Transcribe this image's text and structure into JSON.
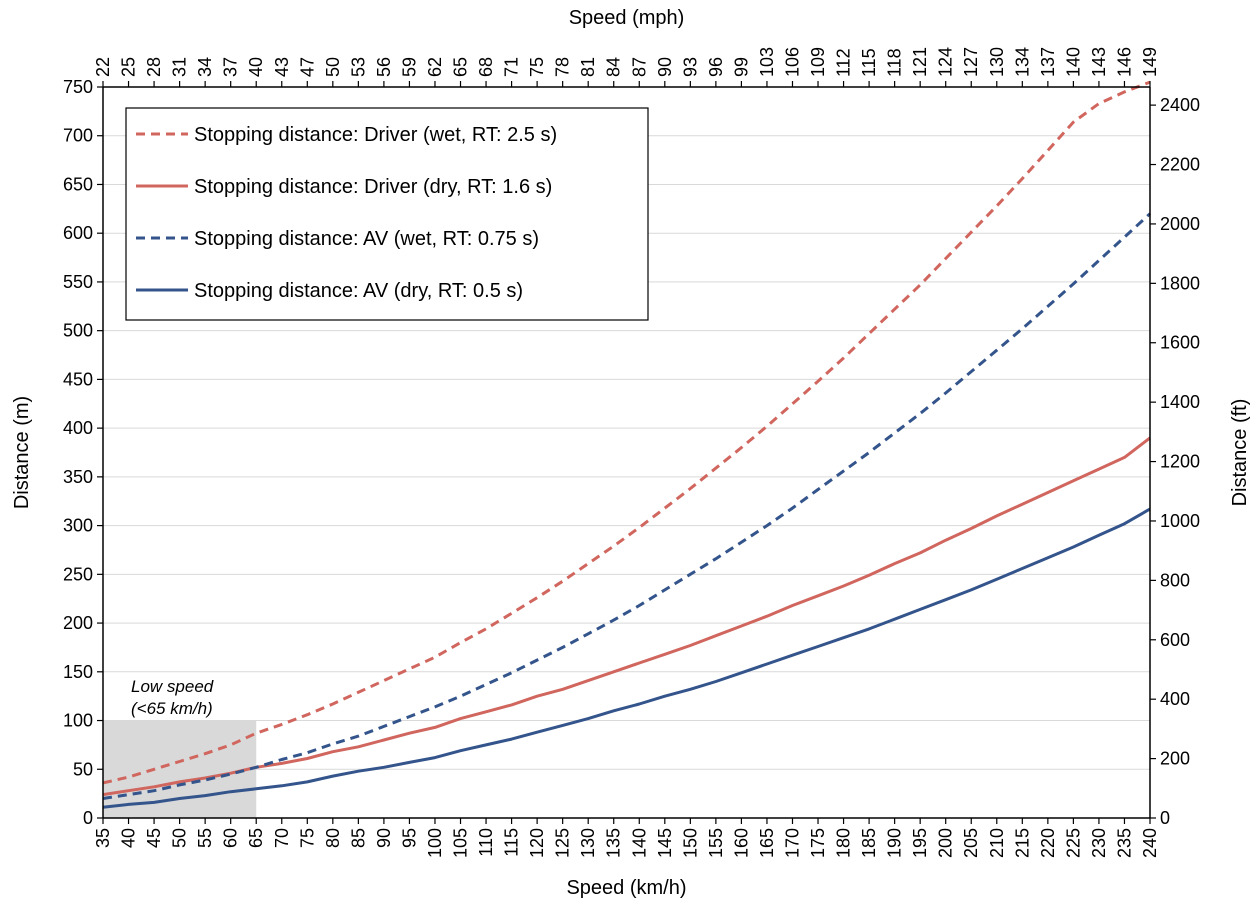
{
  "chart_data": {
    "type": "line",
    "title": "",
    "xlabel": "Speed (km/h)",
    "x2label": "Speed (mph)",
    "ylabel": "Distance (m)",
    "y2label": "Distance (ft)",
    "xlim": [
      35,
      240
    ],
    "ylim": [
      0,
      750
    ],
    "y2lim": [
      0,
      2461
    ],
    "x": [
      35,
      40,
      45,
      50,
      55,
      60,
      65,
      70,
      75,
      80,
      85,
      90,
      95,
      100,
      105,
      110,
      115,
      120,
      125,
      130,
      135,
      140,
      145,
      150,
      155,
      160,
      165,
      170,
      175,
      180,
      185,
      190,
      195,
      200,
      205,
      210,
      215,
      220,
      225,
      230,
      235,
      240
    ],
    "x_tick_labels": [
      "35",
      "40",
      "45",
      "50",
      "55",
      "60",
      "65",
      "70",
      "75",
      "80",
      "85",
      "90",
      "95",
      "100",
      "105",
      "110",
      "115",
      "120",
      "125",
      "130",
      "135",
      "140",
      "145",
      "150",
      "155",
      "160",
      "165",
      "170",
      "175",
      "180",
      "185",
      "190",
      "195",
      "200",
      "205",
      "210",
      "215",
      "220",
      "225",
      "230",
      "235",
      "240"
    ],
    "mph_tick_labels": [
      "22",
      "25",
      "28",
      "31",
      "34",
      "37",
      "40",
      "43",
      "47",
      "50",
      "53",
      "56",
      "59",
      "62",
      "65",
      "68",
      "71",
      "75",
      "78",
      "81",
      "84",
      "87",
      "90",
      "93",
      "96",
      "99",
      "103",
      "106",
      "109",
      "112",
      "115",
      "118",
      "121",
      "124",
      "127",
      "130",
      "134",
      "137",
      "140",
      "143",
      "146",
      "149"
    ],
    "y_tick_labels": [
      "0",
      "50",
      "100",
      "150",
      "200",
      "250",
      "300",
      "350",
      "400",
      "450",
      "500",
      "550",
      "600",
      "650",
      "700",
      "750"
    ],
    "y2_tick_labels": [
      "0",
      "200",
      "400",
      "600",
      "800",
      "1000",
      "1200",
      "1400",
      "1600",
      "1800",
      "2000",
      "2200",
      "2400"
    ],
    "grid": true,
    "legend_position": "top-left",
    "series": [
      {
        "name": "Stopping distance: Driver (wet, RT: 2.5 s)",
        "color": "#d0665e",
        "dashed": true,
        "values": [
          36,
          42,
          50,
          58,
          66,
          75,
          87,
          96,
          106,
          117,
          129,
          141,
          153,
          165,
          180,
          194,
          210,
          226,
          243,
          261,
          279,
          298,
          318,
          338,
          359,
          380,
          402,
          425,
          448,
          472,
          497,
          522,
          547,
          574,
          601,
          628,
          656,
          685,
          714,
          733,
          745,
          755
        ]
      },
      {
        "name": "Stopping distance: Driver (dry, RT: 1.6 s)",
        "color": "#d0665e",
        "dashed": false,
        "values": [
          24,
          28,
          32,
          37,
          41,
          46,
          52,
          56,
          61,
          68,
          73,
          80,
          87,
          93,
          102,
          109,
          116,
          125,
          132,
          141,
          150,
          159,
          168,
          177,
          187,
          197,
          207,
          218,
          228,
          238,
          249,
          261,
          272,
          285,
          297,
          310,
          322,
          334,
          346,
          358,
          370,
          390
        ]
      },
      {
        "name": "Stopping distance: AV (wet, RT: 0.75 s)",
        "color": "#34548c",
        "dashed": true,
        "values": [
          20,
          24,
          28,
          34,
          39,
          45,
          52,
          60,
          67,
          76,
          84,
          94,
          104,
          114,
          125,
          137,
          149,
          162,
          175,
          189,
          203,
          218,
          234,
          250,
          266,
          283,
          300,
          318,
          337,
          356,
          375,
          395,
          415,
          436,
          458,
          480,
          502,
          525,
          548,
          572,
          596,
          620
        ]
      },
      {
        "name": "Stopping distance: AV (dry, RT: 0.5 s)",
        "color": "#34548c",
        "dashed": false,
        "values": [
          11,
          14,
          16,
          20,
          23,
          27,
          30,
          33,
          37,
          43,
          48,
          52,
          57,
          62,
          69,
          75,
          81,
          88,
          95,
          102,
          110,
          117,
          125,
          132,
          140,
          149,
          158,
          167,
          176,
          185,
          194,
          204,
          214,
          224,
          234,
          245,
          256,
          267,
          278,
          290,
          302,
          317
        ]
      }
    ],
    "annotations": {
      "low_speed_line1": "Low speed",
      "low_speed_line2": "(<65 km/h)"
    },
    "shaded_region": {
      "x_range": [
        35,
        65
      ],
      "y_range": [
        0,
        100
      ],
      "color": "#d9d9d9"
    }
  }
}
